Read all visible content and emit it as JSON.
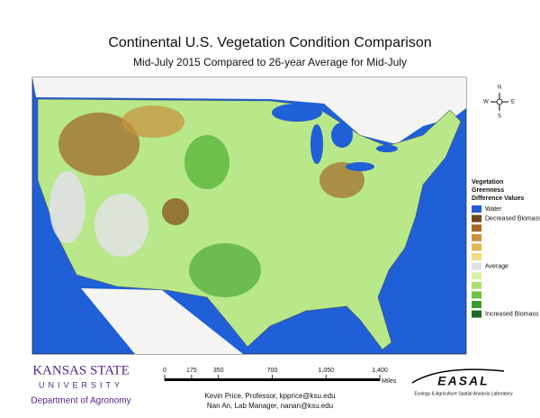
{
  "title": "Continental U.S. Vegetation Condition Comparison",
  "subtitle": "Mid-July 2015 Compared to 26-year Average for Mid-July",
  "compass": {
    "n": "N",
    "s": "S",
    "e": "E",
    "w": "W"
  },
  "legend": {
    "title": [
      "Vegetation",
      "Greenness",
      "Difference Values"
    ],
    "items": [
      {
        "label": "Water",
        "color": "#1f5fd8"
      },
      {
        "label": "Decreased Biomass",
        "color": "#6e4716"
      },
      {
        "label": null,
        "color": "#a4692a"
      },
      {
        "label": null,
        "color": "#cc913c"
      },
      {
        "label": null,
        "color": "#e2b850"
      },
      {
        "label": null,
        "color": "#f3dc80"
      },
      {
        "label": "Average",
        "color": "#e2e2e6"
      },
      {
        "label": null,
        "color": "#d6f3a4"
      },
      {
        "label": null,
        "color": "#a8e16e"
      },
      {
        "label": null,
        "color": "#6cc63e"
      },
      {
        "label": null,
        "color": "#3a9e2e"
      },
      {
        "label": "Increased Biomass",
        "color": "#1e6a1e"
      }
    ]
  },
  "scale_bar": {
    "ticks": [
      0,
      175,
      350,
      700,
      {
        "value": 1050,
        "label": "1,050"
      },
      {
        "value": 1400,
        "label": "1,400"
      }
    ],
    "unit": "Miles"
  },
  "credits": [
    "Kevin Price, Professor, kpprice@ksu.edu",
    "Nan An, Lab Manager, nanan@ksu.edu"
  ],
  "university": {
    "name": "KANSAS STATE",
    "sub": "UNIVERSITY",
    "dept": "Department of Agronomy"
  },
  "lab": {
    "name": "EASAL",
    "full": "Ecology & Agriculture Spatial Analysis Laboratory"
  }
}
